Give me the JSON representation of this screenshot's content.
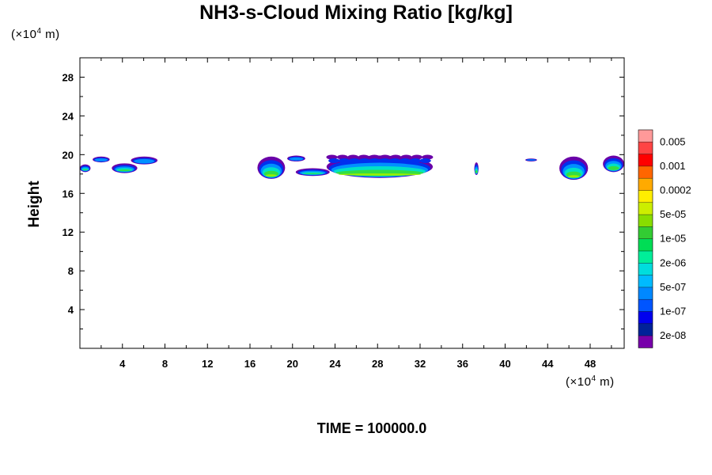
{
  "title": "NH3-s-Cloud Mixing Ratio [kg/kg]",
  "time_label": "TIME = 100000.0",
  "chart_data": {
    "type": "heatmap",
    "title": "NH3-s-Cloud Mixing Ratio [kg/kg]",
    "xlabel": "",
    "ylabel": "Height",
    "x_unit": "(×10⁴ m)",
    "y_unit": "(×10⁴ m)",
    "xlim": [
      0,
      51.2
    ],
    "ylim": [
      0,
      30
    ],
    "x_ticks": [
      4,
      8,
      12,
      16,
      20,
      24,
      28,
      32,
      36,
      40,
      44,
      48
    ],
    "y_ticks": [
      4,
      8,
      12,
      16,
      20,
      24,
      28
    ],
    "colorbar": {
      "labels": [
        "0.005",
        "0.001",
        "0.0002",
        "5e-05",
        "1e-05",
        "2e-06",
        "5e-07",
        "1e-07",
        "2e-08"
      ],
      "colors": [
        "#ff9999",
        "#ff4444",
        "#ff0000",
        "#ff6600",
        "#ffaa00",
        "#ffee00",
        "#ccee00",
        "#88dd00",
        "#33cc33",
        "#00dd55",
        "#00ee99",
        "#00dddd",
        "#00bbff",
        "#0088ff",
        "#0055ff",
        "#0000ee",
        "#002299",
        "#7700aa"
      ]
    },
    "cloud_regions": [
      {
        "x_range": [
          0.0,
          1.0
        ],
        "z_range": [
          18.2,
          19.0
        ],
        "max_level": "5e-07"
      },
      {
        "x_range": [
          1.2,
          2.8
        ],
        "z_range": [
          19.2,
          19.8
        ],
        "max_level": "2e-08"
      },
      {
        "x_range": [
          3.0,
          5.4
        ],
        "z_range": [
          18.1,
          19.1
        ],
        "max_level": "5e-07"
      },
      {
        "x_range": [
          4.8,
          7.3
        ],
        "z_range": [
          19.0,
          19.8
        ],
        "max_level": "2e-08"
      },
      {
        "x_range": [
          16.7,
          19.3
        ],
        "z_range": [
          17.5,
          19.8
        ],
        "max_level": "1e-05"
      },
      {
        "x_range": [
          19.5,
          21.2
        ],
        "z_range": [
          19.3,
          19.9
        ],
        "max_level": "2e-08"
      },
      {
        "x_range": [
          20.3,
          23.5
        ],
        "z_range": [
          17.8,
          18.6
        ],
        "max_level": "5e-07"
      },
      {
        "x_range": [
          23.2,
          33.2
        ],
        "z_range": [
          17.6,
          19.9
        ],
        "max_level": "1e-05"
      },
      {
        "x_range": [
          37.1,
          37.5
        ],
        "z_range": [
          17.9,
          19.2
        ],
        "max_level": "5e-07"
      },
      {
        "x_range": [
          41.9,
          43.0
        ],
        "z_range": [
          19.3,
          19.6
        ],
        "max_level": "2e-08"
      },
      {
        "x_range": [
          45.1,
          47.8
        ],
        "z_range": [
          17.4,
          19.8
        ],
        "max_level": "1e-05"
      },
      {
        "x_range": [
          49.2,
          51.2
        ],
        "z_range": [
          18.2,
          19.9
        ],
        "max_level": "5e-07"
      }
    ],
    "grid": false,
    "legend_position": "right"
  }
}
